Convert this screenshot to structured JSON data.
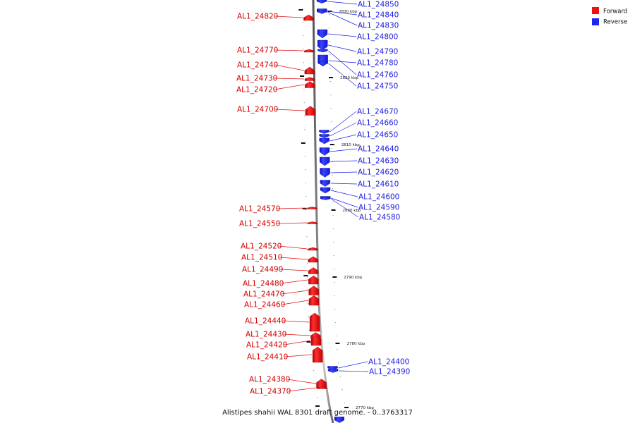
{
  "title": "Alistipes shahii WAL 8301 draft genome. - 0..3763317",
  "legend": [
    {
      "label": "Forward",
      "color": "#ee1111"
    },
    {
      "label": "Reverse",
      "color": "#1f24f0"
    }
  ],
  "chart_data": {
    "type": "genome-map",
    "axis_ticks": [
      "2830 kbp",
      "2820 kbp",
      "2810 kbp",
      "2800 kbp",
      "2790 kbp",
      "2780 kbp",
      "2770 kbp"
    ],
    "forward_genes": [
      "AL1_24820",
      "AL1_24770",
      "AL1_24740",
      "AL1_24730",
      "AL1_24720",
      "AL1_24700",
      "AL1_24570",
      "AL1_24550",
      "AL1_24520",
      "AL1_24510",
      "AL1_24490",
      "AL1_24480",
      "AL1_24470",
      "AL1_24460",
      "AL1_24440",
      "AL1_24430",
      "AL1_24420",
      "AL1_24410",
      "AL1_24380",
      "AL1_24370"
    ],
    "reverse_genes": [
      "AL1_24850",
      "AL1_24840",
      "AL1_24830",
      "AL1_24800",
      "AL1_24790",
      "AL1_24780",
      "AL1_24760",
      "AL1_24750",
      "AL1_24670",
      "AL1_24660",
      "AL1_24650",
      "AL1_24640",
      "AL1_24630",
      "AL1_24620",
      "AL1_24610",
      "AL1_24600",
      "AL1_24590",
      "AL1_24580",
      "AL1_24400",
      "AL1_24390"
    ]
  }
}
